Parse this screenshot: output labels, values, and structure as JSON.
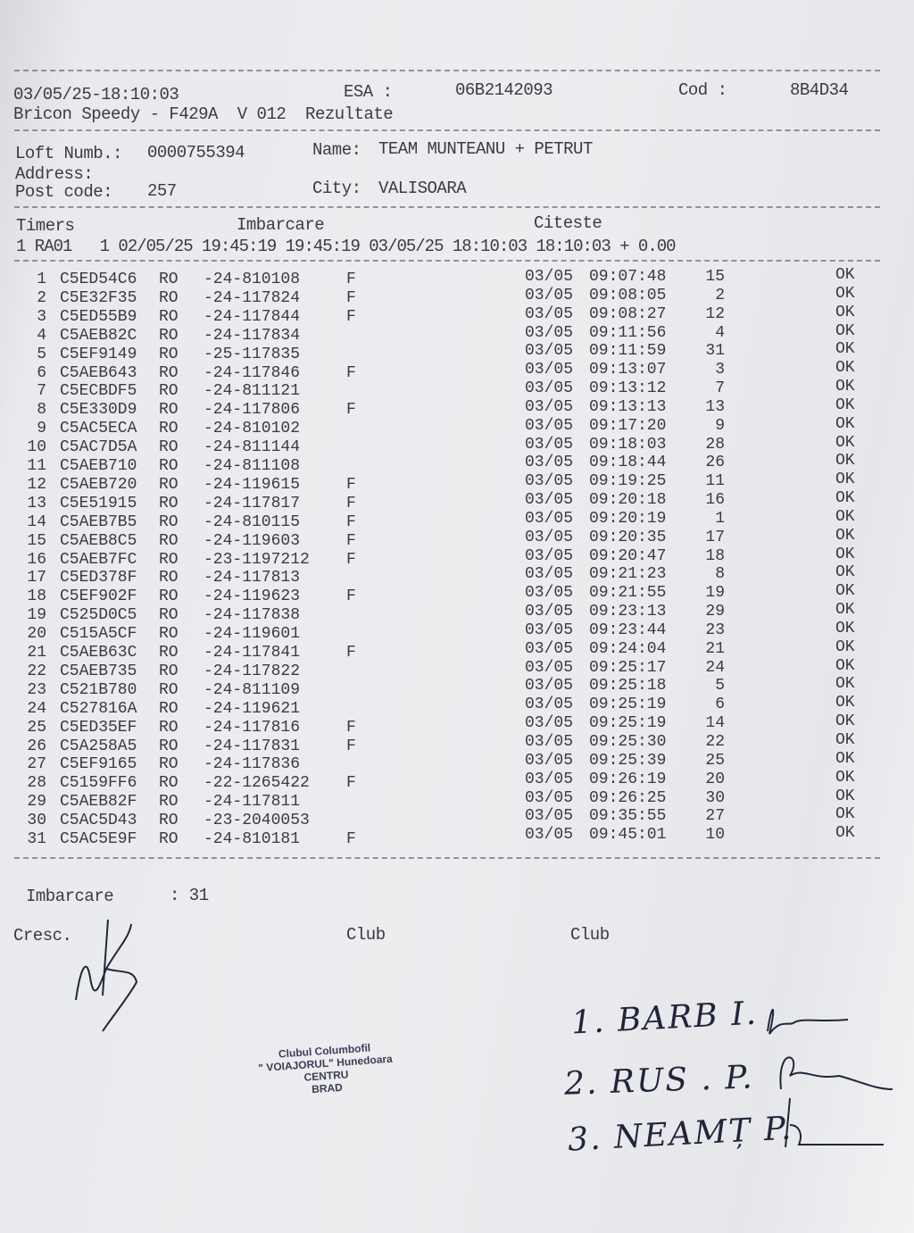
{
  "header": {
    "datetime": "03/05/25-18:10:03",
    "esa_label": "ESA :",
    "esa_value": "06B2142093",
    "cod_label": "Cod :",
    "cod_value": "8B4D34",
    "device_line": "Bricon Speedy - F429A  V 012  Rezultate"
  },
  "loft": {
    "loft_label": "Loft Numb.:",
    "loft_value": "0000755394",
    "name_label": "Name:",
    "name_value": "TEAM MUNTEANU + PETRUT",
    "address_label": "Address:",
    "postcode_label": "Post code:",
    "postcode_value": "257",
    "city_label": "City:",
    "city_value": "VALISOARA"
  },
  "timers": {
    "timers_label": "Timers",
    "imbarcare_label": "Imbarcare",
    "citeste_label": "Citeste",
    "line": "1 RA01   1 02/05/25 19:45:19 19:45:19 03/05/25 18:10:03 18:10:03 + 0.00"
  },
  "results": [
    [
      "1",
      "C5ED54C6",
      "RO",
      "-24-810108",
      "F",
      "03/05",
      "09:07:48",
      "15",
      "OK"
    ],
    [
      "2",
      "C5E32F35",
      "RO",
      "-24-117824",
      "F",
      "03/05",
      "09:08:05",
      "2",
      "OK"
    ],
    [
      "3",
      "C5ED55B9",
      "RO",
      "-24-117844",
      "F",
      "03/05",
      "09:08:27",
      "12",
      "OK"
    ],
    [
      "4",
      "C5AEB82C",
      "RO",
      "-24-117834",
      "",
      "03/05",
      "09:11:56",
      "4",
      "OK"
    ],
    [
      "5",
      "C5EF9149",
      "RO",
      "-25-117835",
      "",
      "03/05",
      "09:11:59",
      "31",
      "OK"
    ],
    [
      "6",
      "C5AEB643",
      "RO",
      "-24-117846",
      "F",
      "03/05",
      "09:13:07",
      "3",
      "OK"
    ],
    [
      "7",
      "C5ECBDF5",
      "RO",
      "-24-811121",
      "",
      "03/05",
      "09:13:12",
      "7",
      "OK"
    ],
    [
      "8",
      "C5E330D9",
      "RO",
      "-24-117806",
      "F",
      "03/05",
      "09:13:13",
      "13",
      "OK"
    ],
    [
      "9",
      "C5AC5ECA",
      "RO",
      "-24-810102",
      "",
      "03/05",
      "09:17:20",
      "9",
      "OK"
    ],
    [
      "10",
      "C5AC7D5A",
      "RO",
      "-24-811144",
      "",
      "03/05",
      "09:18:03",
      "28",
      "OK"
    ],
    [
      "11",
      "C5AEB710",
      "RO",
      "-24-811108",
      "",
      "03/05",
      "09:18:44",
      "26",
      "OK"
    ],
    [
      "12",
      "C5AEB720",
      "RO",
      "-24-119615",
      "F",
      "03/05",
      "09:19:25",
      "11",
      "OK"
    ],
    [
      "13",
      "C5E51915",
      "RO",
      "-24-117817",
      "F",
      "03/05",
      "09:20:18",
      "16",
      "OK"
    ],
    [
      "14",
      "C5AEB7B5",
      "RO",
      "-24-810115",
      "F",
      "03/05",
      "09:20:19",
      "1",
      "OK"
    ],
    [
      "15",
      "C5AEB8C5",
      "RO",
      "-24-119603",
      "F",
      "03/05",
      "09:20:35",
      "17",
      "OK"
    ],
    [
      "16",
      "C5AEB7FC",
      "RO",
      "-23-1197212",
      "F",
      "03/05",
      "09:20:47",
      "18",
      "OK"
    ],
    [
      "17",
      "C5ED378F",
      "RO",
      "-24-117813",
      "",
      "03/05",
      "09:21:23",
      "8",
      "OK"
    ],
    [
      "18",
      "C5EF902F",
      "RO",
      "-24-119623",
      "F",
      "03/05",
      "09:21:55",
      "19",
      "OK"
    ],
    [
      "19",
      "C525D0C5",
      "RO",
      "-24-117838",
      "",
      "03/05",
      "09:23:13",
      "29",
      "OK"
    ],
    [
      "20",
      "C515A5CF",
      "RO",
      "-24-119601",
      "",
      "03/05",
      "09:23:44",
      "23",
      "OK"
    ],
    [
      "21",
      "C5AEB63C",
      "RO",
      "-24-117841",
      "F",
      "03/05",
      "09:24:04",
      "21",
      "OK"
    ],
    [
      "22",
      "C5AEB735",
      "RO",
      "-24-117822",
      "",
      "03/05",
      "09:25:17",
      "24",
      "OK"
    ],
    [
      "23",
      "C521B780",
      "RO",
      "-24-811109",
      "",
      "03/05",
      "09:25:18",
      "5",
      "OK"
    ],
    [
      "24",
      "C527816A",
      "RO",
      "-24-119621",
      "",
      "03/05",
      "09:25:19",
      "6",
      "OK"
    ],
    [
      "25",
      "C5ED35EF",
      "RO",
      "-24-117816",
      "F",
      "03/05",
      "09:25:19",
      "14",
      "OK"
    ],
    [
      "26",
      "C5A258A5",
      "RO",
      "-24-117831",
      "F",
      "03/05",
      "09:25:30",
      "22",
      "OK"
    ],
    [
      "27",
      "C5EF9165",
      "RO",
      "-24-117836",
      "",
      "03/05",
      "09:25:39",
      "25",
      "OK"
    ],
    [
      "28",
      "C5159FF6",
      "RO",
      "-22-1265422",
      "F",
      "03/05",
      "09:26:19",
      "20",
      "OK"
    ],
    [
      "29",
      "C5AEB82F",
      "RO",
      "-24-117811",
      "",
      "03/05",
      "09:26:25",
      "30",
      "OK"
    ],
    [
      "30",
      "C5AC5D43",
      "RO",
      "-23-2040053",
      "",
      "03/05",
      "09:35:55",
      "27",
      "OK"
    ],
    [
      "31",
      "C5AC5E9F",
      "RO",
      "-24-810181",
      "F",
      "03/05",
      "09:45:01",
      "10",
      "OK"
    ]
  ],
  "footer": {
    "imbarcare_label": "Imbarcare",
    "imbarcare_value": ": 31",
    "cresc_label": "Cresc.",
    "club_label_1": "Club",
    "club_label_2": "Club"
  },
  "stamp": {
    "line1": "Clubul Columbofil",
    "line2": "\" VOIAJORUL\" Hunedoara",
    "line3": "CENTRU",
    "line4": "BRAD"
  },
  "handwritten": {
    "signers": [
      "1. BARB I.",
      "2. RUS . P.",
      "3. NEAMȚ P."
    ]
  }
}
